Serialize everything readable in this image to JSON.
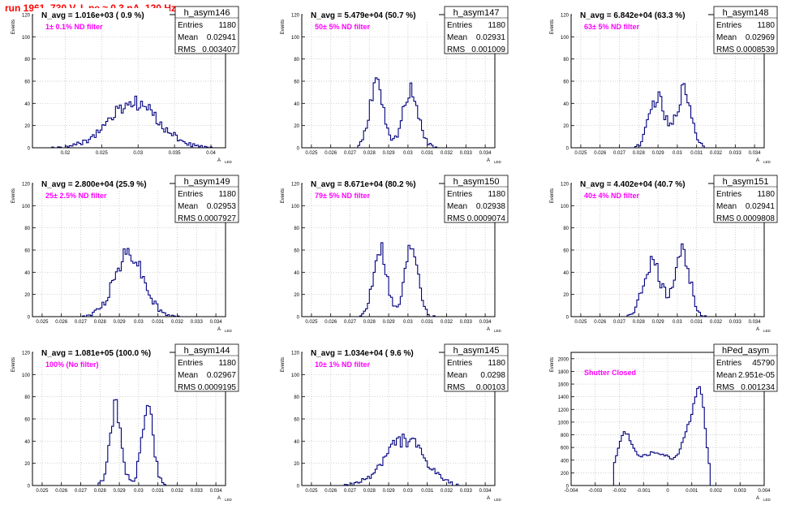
{
  "page_title": "run 1961,   730 V, I_pe ≈ 0.3 nA, 120 Hz",
  "common": {
    "ylabel": "Events",
    "xlabel": "A",
    "xlabel_sub": "LED",
    "stat_labels": [
      "Entries",
      "Mean",
      "RMS"
    ]
  },
  "colors": {
    "histogram": "#000080",
    "title": "#ff0000",
    "annotation": "#ff00ff",
    "grid": "#bbbbbb",
    "axis": "#000000"
  },
  "chart_data": [
    {
      "type": "histogram",
      "name": "h_asym146",
      "title": "N_avg = 1.016e+03 ( 0.9 %)",
      "annotation": "1± 0.1% ND filter",
      "stats": {
        "entries": "1180",
        "mean": "0.02941",
        "rms": "0.003407"
      },
      "xlim": [
        0.0155,
        0.042
      ],
      "ylim": [
        0,
        120
      ],
      "xticks": [
        0.02,
        0.025,
        0.03,
        0.035,
        0.04
      ],
      "xtick_labels": [
        "0.02",
        "0.025",
        "0.03",
        "0.035",
        "0.04"
      ],
      "yticks": [
        0,
        20,
        40,
        60,
        80,
        100,
        120
      ],
      "gauss": [
        {
          "c": 0.0294,
          "s": 0.0034,
          "a": 40
        }
      ],
      "seed": 146,
      "grid": true
    },
    {
      "type": "histogram",
      "name": "h_asym147",
      "title": "N_avg = 5.479e+04 (50.7 %)",
      "annotation": "50± 5% ND filter",
      "stats": {
        "entries": "1180",
        "mean": "0.02931",
        "rms": "0.001009"
      },
      "xlim": [
        0.0245,
        0.0345
      ],
      "ylim": [
        0,
        120
      ],
      "xticks": [
        0.025,
        0.026,
        0.027,
        0.028,
        0.029,
        0.03,
        0.031,
        0.032,
        0.033,
        0.034
      ],
      "xtick_labels": [
        "0.025",
        "0.026",
        "0.027",
        "0.028",
        "0.029",
        "0.03",
        "0.031",
        "0.032",
        "0.033",
        "0.034"
      ],
      "yticks": [
        0,
        20,
        40,
        60,
        80,
        100,
        120
      ],
      "gauss": [
        {
          "c": 0.02835,
          "s": 0.00035,
          "a": 58
        },
        {
          "c": 0.03015,
          "s": 0.0004,
          "a": 52
        }
      ],
      "seed": 147,
      "grid": true
    },
    {
      "type": "histogram",
      "name": "h_asym148",
      "title": "N_avg = 6.842e+04 (63.3 %)",
      "annotation": "63± 5% ND filter",
      "stats": {
        "entries": "1180",
        "mean": "0.02969",
        "rms": "0.0008539"
      },
      "xlim": [
        0.0245,
        0.0345
      ],
      "ylim": [
        0,
        120
      ],
      "xticks": [
        0.025,
        0.026,
        0.027,
        0.028,
        0.029,
        0.03,
        0.031,
        0.032,
        0.033,
        0.034
      ],
      "xtick_labels": [
        "0.025",
        "0.026",
        "0.027",
        "0.028",
        "0.029",
        "0.03",
        "0.031",
        "0.032",
        "0.033",
        "0.034"
      ],
      "yticks": [
        0,
        20,
        40,
        60,
        80,
        100,
        120
      ],
      "gauss": [
        {
          "c": 0.02895,
          "s": 0.0004,
          "a": 45
        },
        {
          "c": 0.03035,
          "s": 0.00038,
          "a": 52
        }
      ],
      "seed": 148,
      "grid": true
    },
    {
      "type": "histogram",
      "name": "h_asym149",
      "title": "N_avg = 2.800e+04 (25.9 %)",
      "annotation": "25± 2.5% ND filter",
      "stats": {
        "entries": "1180",
        "mean": "0.02953",
        "rms": "0.0007927"
      },
      "xlim": [
        0.0245,
        0.0345
      ],
      "ylim": [
        0,
        120
      ],
      "xticks": [
        0.025,
        0.026,
        0.027,
        0.028,
        0.029,
        0.03,
        0.031,
        0.032,
        0.033,
        0.034
      ],
      "xtick_labels": [
        "0.025",
        "0.026",
        "0.027",
        "0.028",
        "0.029",
        "0.03",
        "0.031",
        "0.032",
        "0.033",
        "0.034"
      ],
      "yticks": [
        0,
        20,
        40,
        60,
        80,
        100,
        120
      ],
      "gauss": [
        {
          "c": 0.0295,
          "s": 0.00075,
          "a": 58
        }
      ],
      "seed": 149,
      "grid": true
    },
    {
      "type": "histogram",
      "name": "h_asym150",
      "title": "N_avg = 8.671e+04 (80.2 %)",
      "annotation": "79± 5% ND filter",
      "stats": {
        "entries": "1180",
        "mean": "0.02938",
        "rms": "0.0009074"
      },
      "xlim": [
        0.0245,
        0.0345
      ],
      "ylim": [
        0,
        120
      ],
      "xticks": [
        0.025,
        0.026,
        0.027,
        0.028,
        0.029,
        0.03,
        0.031,
        0.032,
        0.033,
        0.034
      ],
      "xtick_labels": [
        "0.025",
        "0.026",
        "0.027",
        "0.028",
        "0.029",
        "0.03",
        "0.031",
        "0.032",
        "0.033",
        "0.034"
      ],
      "yticks": [
        0,
        20,
        40,
        60,
        80,
        100,
        120
      ],
      "gauss": [
        {
          "c": 0.02855,
          "s": 0.00035,
          "a": 64
        },
        {
          "c": 0.0302,
          "s": 0.00035,
          "a": 66
        }
      ],
      "seed": 150,
      "grid": true
    },
    {
      "type": "histogram",
      "name": "h_asym151",
      "title": "N_avg = 4.402e+04 (40.7 %)",
      "annotation": "40± 4% ND filter",
      "stats": {
        "entries": "1180",
        "mean": "0.02941",
        "rms": "0.0009808"
      },
      "xlim": [
        0.0245,
        0.0345
      ],
      "ylim": [
        0,
        120
      ],
      "xticks": [
        0.025,
        0.026,
        0.027,
        0.028,
        0.029,
        0.03,
        0.031,
        0.032,
        0.033,
        0.034
      ],
      "xtick_labels": [
        "0.025",
        "0.026",
        "0.027",
        "0.028",
        "0.029",
        "0.03",
        "0.031",
        "0.032",
        "0.033",
        "0.034"
      ],
      "yticks": [
        0,
        20,
        40,
        60,
        80,
        100,
        120
      ],
      "gauss": [
        {
          "c": 0.0287,
          "s": 0.00045,
          "a": 48
        },
        {
          "c": 0.03025,
          "s": 0.0004,
          "a": 58
        }
      ],
      "seed": 151,
      "grid": true
    },
    {
      "type": "histogram",
      "name": "h_asym144",
      "title": "N_avg = 1.081e+05 (100.0 %)",
      "annotation": "100% (No filter)",
      "stats": {
        "entries": "1180",
        "mean": "0.02967",
        "rms": "0.0009195"
      },
      "xlim": [
        0.0245,
        0.0345
      ],
      "ylim": [
        0,
        120
      ],
      "xticks": [
        0.025,
        0.026,
        0.027,
        0.028,
        0.029,
        0.03,
        0.031,
        0.032,
        0.033,
        0.034
      ],
      "xtick_labels": [
        "0.025",
        "0.026",
        "0.027",
        "0.028",
        "0.029",
        "0.03",
        "0.031",
        "0.032",
        "0.033",
        "0.034"
      ],
      "yticks": [
        0,
        20,
        40,
        60,
        80,
        100,
        120
      ],
      "gauss": [
        {
          "c": 0.0288,
          "s": 0.0003,
          "a": 70
        },
        {
          "c": 0.03045,
          "s": 0.0003,
          "a": 70
        }
      ],
      "seed": 144,
      "grid": true
    },
    {
      "type": "histogram",
      "name": "h_asym145",
      "title": "N_avg = 1.034e+04 ( 9.6 %)",
      "annotation": "10± 1% ND filter",
      "stats": {
        "entries": "1180",
        "mean": "0.0298",
        "rms": "0.00103"
      },
      "xlim": [
        0.0245,
        0.0345
      ],
      "ylim": [
        0,
        120
      ],
      "xticks": [
        0.025,
        0.026,
        0.027,
        0.028,
        0.029,
        0.03,
        0.031,
        0.032,
        0.033,
        0.034
      ],
      "xtick_labels": [
        "0.025",
        "0.026",
        "0.027",
        "0.028",
        "0.029",
        "0.03",
        "0.031",
        "0.032",
        "0.033",
        "0.034"
      ],
      "yticks": [
        0,
        20,
        40,
        60,
        80,
        100,
        120
      ],
      "gauss": [
        {
          "c": 0.0298,
          "s": 0.001,
          "a": 42
        }
      ],
      "seed": 145,
      "grid": true
    },
    {
      "type": "histogram",
      "name": "hPed_asym",
      "title": "",
      "annotation": "Shutter Closed",
      "stats": {
        "entries": "45790",
        "mean": "2.951e-05",
        "rms": "0.001234"
      },
      "xlim": [
        -0.004,
        0.004
      ],
      "ylim": [
        0,
        2100
      ],
      "xticks": [
        -0.004,
        -0.003,
        -0.002,
        -0.001,
        0,
        0.001,
        0.002,
        0.003,
        0.004
      ],
      "xtick_labels": [
        "-0.004",
        "-0.003",
        "-0.002",
        "-0.001",
        "0",
        "0.001",
        "0.002",
        "0.003",
        "0.004"
      ],
      "yticks": [
        0,
        200,
        400,
        600,
        800,
        1000,
        1200,
        1400,
        1600,
        1800,
        2000
      ],
      "gauss": [
        {
          "c": -0.0018,
          "s": 0.0003,
          "a": 650
        },
        {
          "c": -0.0005,
          "s": 0.0009,
          "a": 520
        },
        {
          "c": 0.0009,
          "s": 0.0003,
          "a": 700
        },
        {
          "c": 0.00135,
          "s": 0.00022,
          "a": 1250
        }
      ],
      "cutoff": [
        -0.0022,
        0.0018
      ],
      "seed": 999,
      "grid": true
    }
  ]
}
